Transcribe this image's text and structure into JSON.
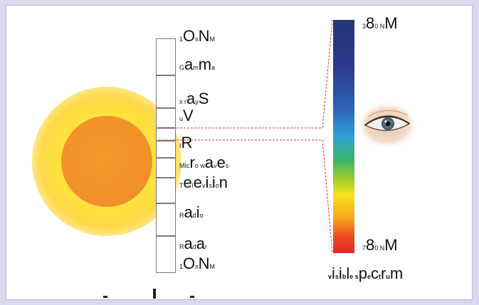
{
  "scale_labels": [
    {
      "id": "10nm-top",
      "parts": [
        [
          "1",
          "sm"
        ],
        [
          "O",
          "big"
        ],
        [
          "s",
          "sm"
        ],
        [
          "N",
          "big"
        ],
        [
          "M",
          "sm"
        ]
      ]
    },
    {
      "id": "gamma",
      "parts": [
        [
          "G",
          "sm"
        ],
        [
          "a",
          "big"
        ],
        [
          "m",
          "sm"
        ],
        [
          "m",
          "big"
        ],
        [
          "a",
          "sm"
        ]
      ]
    },
    {
      "id": "xrays",
      "parts": [
        [
          "x",
          "sm"
        ],
        [
          " r",
          "sm"
        ],
        [
          "a",
          "big"
        ],
        [
          "y",
          "sm"
        ],
        [
          "S",
          "big"
        ]
      ]
    },
    {
      "id": "uv",
      "parts": [
        [
          "u",
          "sm"
        ],
        [
          "V",
          "big"
        ]
      ]
    },
    {
      "id": "ir",
      "parts": [
        [
          "I",
          "sm"
        ],
        [
          "R",
          "big"
        ]
      ]
    },
    {
      "id": "microwaves",
      "parts": [
        [
          "MIc",
          "sm"
        ],
        [
          "r",
          "big"
        ],
        [
          "o",
          "sm"
        ],
        [
          " w",
          "sm"
        ],
        [
          "a",
          "big"
        ],
        [
          "v",
          "sm"
        ],
        [
          "e",
          "big"
        ],
        [
          "s",
          "sm"
        ]
      ]
    },
    {
      "id": "television",
      "parts": [
        [
          "T",
          "sm"
        ],
        [
          "e",
          "big"
        ],
        [
          "l",
          "sm"
        ],
        [
          "e",
          "big"
        ],
        [
          "v",
          "sm"
        ],
        [
          "i",
          "big"
        ],
        [
          "s",
          "sm"
        ],
        [
          "i",
          "big"
        ],
        [
          "o",
          "sm"
        ],
        [
          "n",
          "big"
        ]
      ]
    },
    {
      "id": "radio",
      "parts": [
        [
          "R",
          "sm"
        ],
        [
          "a",
          "big"
        ],
        [
          "d",
          "sm"
        ],
        [
          "i",
          "big"
        ],
        [
          "o",
          "sm"
        ]
      ]
    },
    {
      "id": "radar",
      "parts": [
        [
          "R",
          "sm"
        ],
        [
          "a",
          "big"
        ],
        [
          "d",
          "sm"
        ],
        [
          "a",
          "big"
        ],
        [
          "r",
          "sm"
        ]
      ]
    },
    {
      "id": "10nm-bottom",
      "parts": [
        [
          "1",
          "sm"
        ],
        [
          "O",
          "big"
        ],
        [
          "s",
          "sm"
        ],
        [
          "N",
          "big"
        ],
        [
          "M",
          "sm"
        ]
      ]
    }
  ],
  "spectrum_top_label": [
    [
      "3",
      "sm"
    ],
    [
      "8",
      "big"
    ],
    [
      "0",
      "sm"
    ],
    [
      " N",
      "sm"
    ],
    [
      "M",
      "big"
    ]
  ],
  "spectrum_bottom_label": [
    [
      "7",
      "sm"
    ],
    [
      "8",
      "big"
    ],
    [
      "0",
      "sm"
    ],
    [
      " N",
      "sm"
    ],
    [
      "M",
      "big"
    ]
  ],
  "spectrum_caption": [
    [
      "v",
      "sm"
    ],
    [
      "i",
      "big"
    ],
    [
      "s",
      "sm"
    ],
    [
      "i",
      "big"
    ],
    [
      "b",
      "sm"
    ],
    [
      "l",
      "big"
    ],
    [
      "e",
      "sm"
    ],
    [
      " s",
      "sm"
    ],
    [
      "p",
      "big"
    ],
    [
      "e",
      "sm"
    ],
    [
      "c",
      "big"
    ],
    [
      "t",
      "sm"
    ],
    [
      "r",
      "big"
    ],
    [
      "u",
      "sm"
    ],
    [
      "m",
      "big"
    ]
  ],
  "colors": {
    "sun_core": "#f0902a",
    "sun_glow": "#ffe23a",
    "guide_lines": "#e03030",
    "spectrum_top": "#253478",
    "spectrum_bottom": "#e3262a"
  }
}
